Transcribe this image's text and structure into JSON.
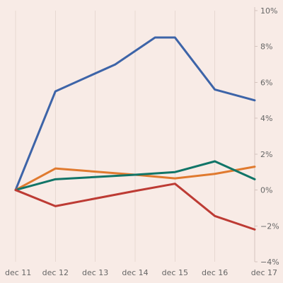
{
  "chart_data": {
    "type": "line",
    "title": "",
    "xlabel": "",
    "ylabel": "",
    "x": [
      "dec 11",
      "dec 12",
      "dec 13",
      "dec 14",
      "dec 15",
      "dec 16",
      "dec 17"
    ],
    "ylim": [
      -4,
      10
    ],
    "yticks": [
      {
        "value": 10,
        "label": "10%"
      },
      {
        "value": 8,
        "label": "8%"
      },
      {
        "value": 6,
        "label": "6%"
      },
      {
        "value": 4,
        "label": "4%"
      },
      {
        "value": 2,
        "label": "2%"
      },
      {
        "value": 0,
        "label": "0%"
      },
      {
        "value": -2,
        "label": "−2%"
      },
      {
        "value": -4,
        "label": "−4%"
      }
    ],
    "y_axis_side": "right",
    "grid": true,
    "legend": "none",
    "series": [
      {
        "color": "#3d64a8",
        "values": [
          0,
          5.5,
          7.0,
          8.5,
          8.5,
          5.6,
          5.0
        ],
        "x_index": [
          0,
          1,
          2.5,
          3.5,
          4,
          5,
          6
        ]
      },
      {
        "color": "#e07a2f",
        "values": [
          0,
          1.2,
          0.85,
          0.65,
          0.65,
          0.9,
          1.3
        ],
        "x_index": [
          0,
          1,
          3,
          4,
          4,
          5,
          6
        ]
      },
      {
        "color": "#117568",
        "values": [
          0,
          0.6,
          0.85,
          1.0,
          1.0,
          1.6,
          0.6
        ],
        "x_index": [
          0,
          1,
          3,
          4,
          4,
          5,
          6
        ]
      },
      {
        "color": "#bd3b34",
        "values": [
          0,
          -0.9,
          -0.05,
          0.35,
          0.35,
          -1.45,
          -2.2
        ],
        "x_index": [
          0,
          1,
          3,
          4,
          4,
          5,
          6
        ]
      }
    ]
  }
}
